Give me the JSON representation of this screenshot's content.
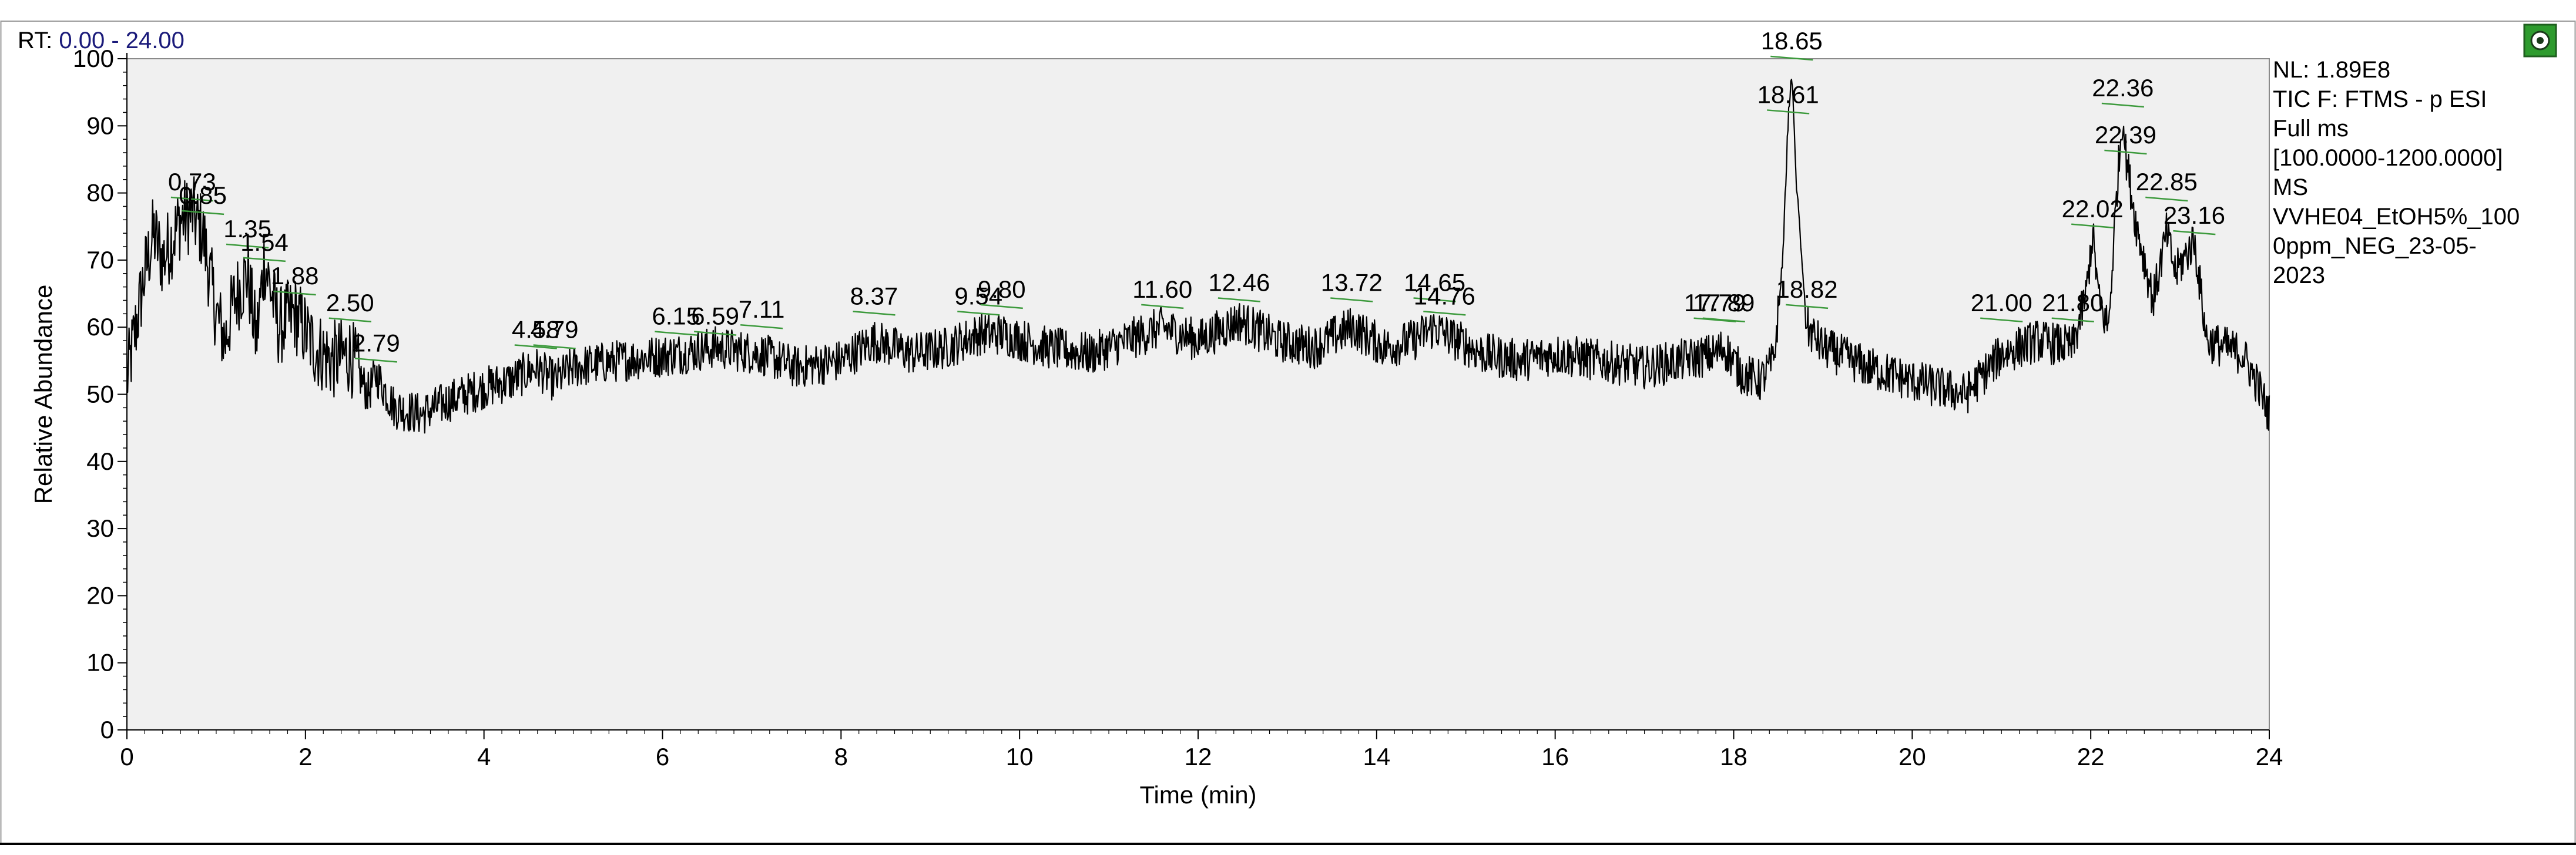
{
  "rt_label": "RT:",
  "rt_range": "0.00 - 24.00",
  "info": {
    "lines": [
      "NL: 1.89E8",
      "TIC F: FTMS - p ESI",
      "Full ms",
      "[100.0000-1200.0000]",
      "MS",
      "VVHE04_EtOH5%_100",
      "0ppm_NEG_23-05-",
      "2023"
    ]
  },
  "colors": {
    "plot_background": "#f0f0f0",
    "trace": "#000000",
    "peak_marker": "#3c9a3c",
    "rt_value": "#1a1a7a",
    "icon_green": "#2e9b2e"
  },
  "icons": [
    "settings-icon"
  ],
  "chart_data": {
    "type": "line",
    "xlabel": "Time (min)",
    "ylabel": "Relative Abundance",
    "xlim": [
      0,
      24
    ],
    "ylim": [
      0,
      100
    ],
    "x_ticks": [
      0,
      2,
      4,
      6,
      8,
      10,
      12,
      14,
      16,
      18,
      20,
      22,
      24
    ],
    "y_ticks": [
      0,
      10,
      20,
      30,
      40,
      50,
      60,
      70,
      80,
      90,
      100
    ],
    "grid": false,
    "legend": "none",
    "series": [
      {
        "x": [
          0,
          0.1,
          0.2,
          0.3,
          0.4,
          0.5,
          0.6,
          0.73,
          0.85,
          1.0,
          1.1,
          1.2,
          1.35,
          1.45,
          1.54,
          1.7,
          1.88,
          2.1,
          2.3,
          2.5,
          2.7,
          2.79,
          3.0,
          3.3,
          3.6,
          4.0,
          4.3,
          4.58,
          4.79,
          5.0,
          5.5,
          6.15,
          6.59,
          7.11,
          7.5,
          8.0,
          8.37,
          8.8,
          9.2,
          9.54,
          9.8,
          10.3,
          10.8,
          11.2,
          11.6,
          12.0,
          12.46,
          12.9,
          13.3,
          13.72,
          14.1,
          14.4,
          14.65,
          14.76,
          15.2,
          15.6,
          16.0,
          16.5,
          17.0,
          17.4,
          17.79,
          17.89,
          18.1,
          18.3,
          18.45,
          18.55,
          18.61,
          18.65,
          18.7,
          18.82,
          19.0,
          19.5,
          20.0,
          20.3,
          20.6,
          21.0,
          21.4,
          21.8,
          21.95,
          22.02,
          22.1,
          22.2,
          22.3,
          22.36,
          22.39,
          22.5,
          22.7,
          22.85,
          22.95,
          23.16,
          23.3,
          23.5,
          23.7,
          23.85,
          24.0
        ],
        "y": [
          52,
          60,
          68,
          74,
          70,
          73,
          76,
          77,
          74,
          62,
          58,
          64,
          68,
          58,
          70,
          60,
          62,
          57,
          55,
          56,
          50,
          53,
          48,
          47,
          49,
          51,
          52,
          54,
          52,
          54,
          55,
          56,
          57,
          56,
          54,
          55,
          58,
          56,
          57,
          59,
          59,
          57,
          56,
          58,
          60,
          58,
          61,
          58,
          57,
          60,
          57,
          58,
          60,
          59,
          56,
          55,
          56,
          55,
          54,
          55,
          56,
          57,
          53,
          52,
          55,
          70,
          91,
          98,
          82,
          60,
          57,
          54,
          52,
          51,
          50,
          56,
          58,
          57,
          65,
          74,
          63,
          60,
          82,
          92,
          86,
          76,
          64,
          74,
          68,
          73,
          58,
          57,
          56,
          52,
          47
        ]
      }
    ],
    "annotations": [
      {
        "label": "0.73",
        "x": 0.73,
        "y": 79
      },
      {
        "label": "0.85",
        "x": 0.85,
        "y": 77
      },
      {
        "label": "1.35",
        "x": 1.35,
        "y": 72
      },
      {
        "label": "1.54",
        "x": 1.54,
        "y": 70
      },
      {
        "label": "1.88",
        "x": 1.88,
        "y": 65
      },
      {
        "label": "2.50",
        "x": 2.5,
        "y": 61
      },
      {
        "label": "2.79",
        "x": 2.79,
        "y": 55
      },
      {
        "label": "4.58",
        "x": 4.58,
        "y": 57
      },
      {
        "label": "4.79",
        "x": 4.79,
        "y": 57
      },
      {
        "label": "6.15",
        "x": 6.15,
        "y": 59
      },
      {
        "label": "6.59",
        "x": 6.59,
        "y": 59
      },
      {
        "label": "7.11",
        "x": 7.11,
        "y": 60
      },
      {
        "label": "8.37",
        "x": 8.37,
        "y": 62
      },
      {
        "label": "9.54",
        "x": 9.54,
        "y": 62
      },
      {
        "label": "9.80",
        "x": 9.8,
        "y": 63
      },
      {
        "label": "11.60",
        "x": 11.6,
        "y": 63
      },
      {
        "label": "12.46",
        "x": 12.46,
        "y": 64
      },
      {
        "label": "13.72",
        "x": 13.72,
        "y": 64
      },
      {
        "label": "14.65",
        "x": 14.65,
        "y": 64
      },
      {
        "label": "14.76",
        "x": 14.76,
        "y": 62
      },
      {
        "label": "17.79",
        "x": 17.79,
        "y": 61
      },
      {
        "label": "17.89",
        "x": 17.89,
        "y": 61
      },
      {
        "label": "18.61",
        "x": 18.61,
        "y": 92
      },
      {
        "label": "18.65",
        "x": 18.65,
        "y": 100
      },
      {
        "label": "18.82",
        "x": 18.82,
        "y": 63
      },
      {
        "label": "21.00",
        "x": 21.0,
        "y": 61
      },
      {
        "label": "21.80",
        "x": 21.8,
        "y": 61
      },
      {
        "label": "22.02",
        "x": 22.02,
        "y": 75
      },
      {
        "label": "22.36",
        "x": 22.36,
        "y": 93
      },
      {
        "label": "22.39",
        "x": 22.39,
        "y": 86
      },
      {
        "label": "22.85",
        "x": 22.85,
        "y": 79
      },
      {
        "label": "23.16",
        "x": 23.16,
        "y": 74
      }
    ]
  }
}
